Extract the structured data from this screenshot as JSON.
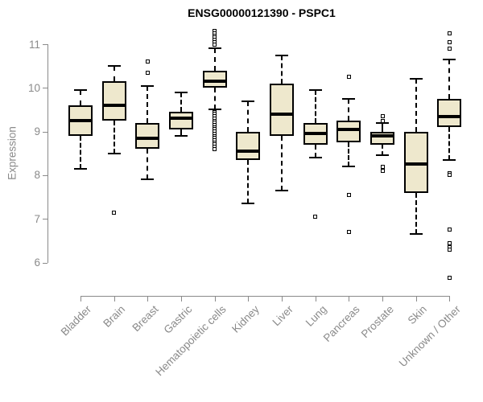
{
  "title": "ENSG00000121390 - PSPC1",
  "y_axis_label": "Expression",
  "chart_data": {
    "type": "boxplot",
    "title": "ENSG00000121390 - PSPC1",
    "xlabel": "",
    "ylabel": "Expression",
    "ylim": [
      5.5,
      11.4
    ],
    "yticks": [
      6,
      7,
      8,
      9,
      10,
      11
    ],
    "grid": false,
    "legend": false,
    "categories": [
      "Bladder",
      "Brain",
      "Breast",
      "Gastric",
      "Hematopoietic cells",
      "Kidney",
      "Liver",
      "Lung",
      "Pancreas",
      "Prostate",
      "Skin",
      "Unknown / Other"
    ],
    "series": [
      {
        "name": "Bladder",
        "low": 8.15,
        "q1": 8.9,
        "median": 9.25,
        "q3": 9.6,
        "high": 9.95,
        "outliers": []
      },
      {
        "name": "Brain",
        "low": 8.5,
        "q1": 9.25,
        "median": 9.6,
        "q3": 10.15,
        "high": 10.5,
        "outliers": [
          7.15
        ]
      },
      {
        "name": "Breast",
        "low": 7.9,
        "q1": 8.6,
        "median": 8.85,
        "q3": 9.2,
        "high": 10.05,
        "outliers": [
          10.6,
          10.35
        ]
      },
      {
        "name": "Gastric",
        "low": 8.9,
        "q1": 9.05,
        "median": 9.3,
        "q3": 9.45,
        "high": 9.9,
        "outliers": []
      },
      {
        "name": "Hematopoietic cells",
        "low": 9.5,
        "q1": 10.0,
        "median": 10.15,
        "q3": 10.4,
        "high": 10.9,
        "outliers": [
          11.3,
          11.25,
          11.2,
          11.15,
          11.1,
          11.05,
          11.0,
          9.45,
          9.4,
          9.35,
          9.3,
          9.25,
          9.2,
          9.15,
          9.1,
          9.05,
          9.0,
          8.95,
          8.9,
          8.85,
          8.8,
          8.75,
          8.7,
          8.65,
          8.6
        ]
      },
      {
        "name": "Kidney",
        "low": 7.35,
        "q1": 8.35,
        "median": 8.55,
        "q3": 9.0,
        "high": 9.7,
        "outliers": []
      },
      {
        "name": "Liver",
        "low": 7.65,
        "q1": 8.9,
        "median": 9.4,
        "q3": 10.1,
        "high": 10.75,
        "outliers": []
      },
      {
        "name": "Lung",
        "low": 8.4,
        "q1": 8.7,
        "median": 8.95,
        "q3": 9.2,
        "high": 9.95,
        "outliers": [
          7.05
        ]
      },
      {
        "name": "Pancreas",
        "low": 8.2,
        "q1": 8.75,
        "median": 9.05,
        "q3": 9.25,
        "high": 9.75,
        "outliers": [
          10.25,
          7.55,
          6.7
        ]
      },
      {
        "name": "Prostate",
        "low": 8.45,
        "q1": 8.7,
        "median": 8.9,
        "q3": 9.0,
        "high": 9.2,
        "outliers": [
          9.35,
          9.25,
          8.2,
          8.1
        ]
      },
      {
        "name": "Skin",
        "low": 6.65,
        "q1": 7.6,
        "median": 8.25,
        "q3": 9.0,
        "high": 10.2,
        "outliers": []
      },
      {
        "name": "Unknown / Other",
        "low": 8.35,
        "q1": 9.1,
        "median": 9.35,
        "q3": 9.75,
        "high": 10.65,
        "outliers": [
          11.25,
          11.05,
          10.9,
          8.05,
          8.0,
          6.75,
          6.45,
          6.35,
          6.3,
          5.65
        ]
      }
    ],
    "colors": {
      "box_fill": "#EEE8CD",
      "box_stroke": "#000000",
      "median": "#000000",
      "axis": "#8a8a8a",
      "title": "#000000",
      "background": "#ffffff"
    }
  }
}
